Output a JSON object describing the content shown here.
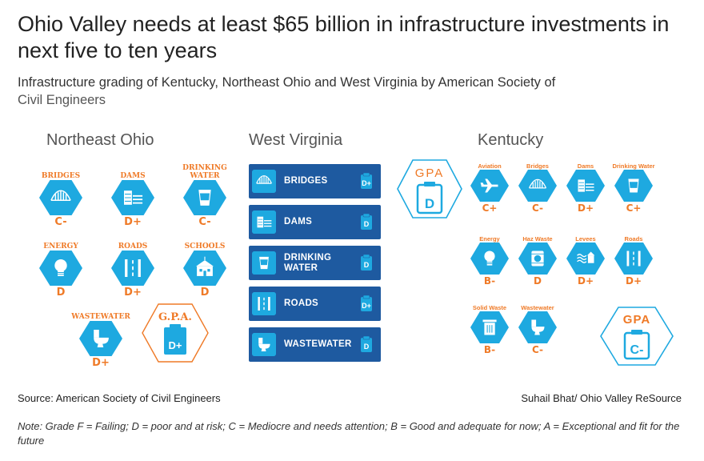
{
  "title": "Ohio Valley needs at least $65 billion in infrastructure investments in next five to ten years",
  "subtitle_line1": "Infrastructure grading of Kentucky, Northeast Ohio and West Virginia by American Society of",
  "subtitle_line2": "Civil Engineers",
  "colors": {
    "hex_blue": "#1ea9e0",
    "orange": "#ef7a27",
    "wv_navy": "#1e5aa0"
  },
  "chart_data": {
    "type": "table",
    "regions": [
      {
        "name": "Northeast Ohio",
        "grades": [
          {
            "category": "BRIDGES",
            "grade": "C-",
            "icon": "bridge-icon"
          },
          {
            "category": "DAMS",
            "grade": "D+",
            "icon": "dam-icon"
          },
          {
            "category": "DRINKING WATER",
            "grade": "C-",
            "icon": "water-glass-icon"
          },
          {
            "category": "ENERGY",
            "grade": "D",
            "icon": "lightbulb-icon"
          },
          {
            "category": "ROADS",
            "grade": "D+",
            "icon": "road-icon"
          },
          {
            "category": "SCHOOLS",
            "grade": "D",
            "icon": "school-icon"
          },
          {
            "category": "WASTEWATER",
            "grade": "D+",
            "icon": "toilet-icon"
          }
        ],
        "gpa_label": "G.P.A.",
        "gpa": "D+"
      },
      {
        "name": "West Virginia",
        "grades": [
          {
            "category": "BRIDGES",
            "grade": "D+",
            "icon": "bridge-icon"
          },
          {
            "category": "DAMS",
            "grade": "D",
            "icon": "dam-icon"
          },
          {
            "category": "DRINKING WATER",
            "grade": "D",
            "icon": "water-glass-icon"
          },
          {
            "category": "ROADS",
            "grade": "D+",
            "icon": "road-icon"
          },
          {
            "category": "WASTEWATER",
            "grade": "D",
            "icon": "toilet-icon"
          }
        ],
        "gpa_label": "GPA",
        "gpa": "D"
      },
      {
        "name": "Kentucky",
        "grades": [
          {
            "category": "Aviation",
            "grade": "C+",
            "icon": "airplane-icon"
          },
          {
            "category": "Bridges",
            "grade": "C-",
            "icon": "bridge-icon"
          },
          {
            "category": "Dams",
            "grade": "D+",
            "icon": "dam-icon"
          },
          {
            "category": "Drinking Water",
            "grade": "C+",
            "icon": "water-glass-icon"
          },
          {
            "category": "Energy",
            "grade": "B-",
            "icon": "lightbulb-icon"
          },
          {
            "category": "Haz Waste",
            "grade": "D",
            "icon": "hazard-barrel-icon"
          },
          {
            "category": "Levees",
            "grade": "D+",
            "icon": "levee-icon"
          },
          {
            "category": "Roads",
            "grade": "D+",
            "icon": "road-icon"
          },
          {
            "category": "Solid Waste",
            "grade": "B-",
            "icon": "trash-icon"
          },
          {
            "category": "Wastewater",
            "grade": "C-",
            "icon": "toilet-icon"
          }
        ],
        "gpa_label": "GPA",
        "gpa": "C-"
      }
    ]
  },
  "source": "Source: American Society of Civil Engineers",
  "credit": "Suhail Bhat/ Ohio Valley ReSource",
  "note": "Note: Grade F = Failing; D = poor and at risk; C = Mediocre and needs attention; B = Good and adequate for now; A = Exceptional and fit for the future"
}
